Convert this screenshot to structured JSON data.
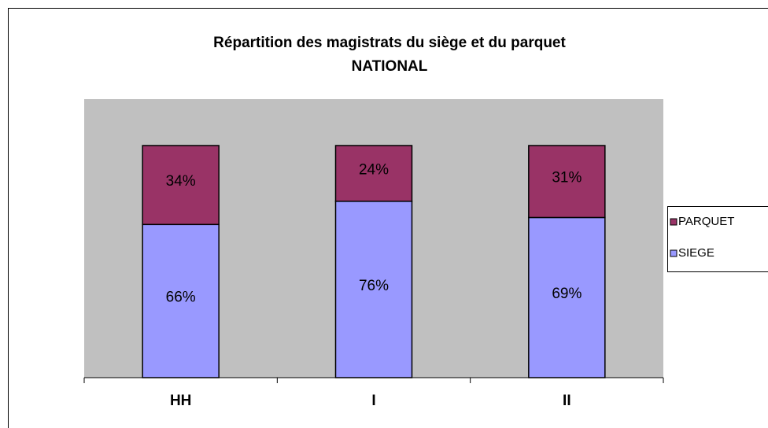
{
  "chart_data": {
    "type": "stacked_bar",
    "title": [
      "Répartition des magistrats du siège et du parquet",
      "NATIONAL"
    ],
    "categories": [
      "HH",
      "I",
      "II"
    ],
    "series": [
      {
        "name": "SIEGE",
        "color": "#9999ff",
        "values": [
          66,
          76,
          69
        ],
        "value_labels": [
          "66%",
          "76%",
          "69%"
        ]
      },
      {
        "name": "PARQUET",
        "color": "#993366",
        "values": [
          34,
          24,
          31
        ],
        "value_labels": [
          "34%",
          "24%",
          "31%"
        ]
      }
    ],
    "plot_background": "#c0c0c0",
    "legend": "right"
  }
}
